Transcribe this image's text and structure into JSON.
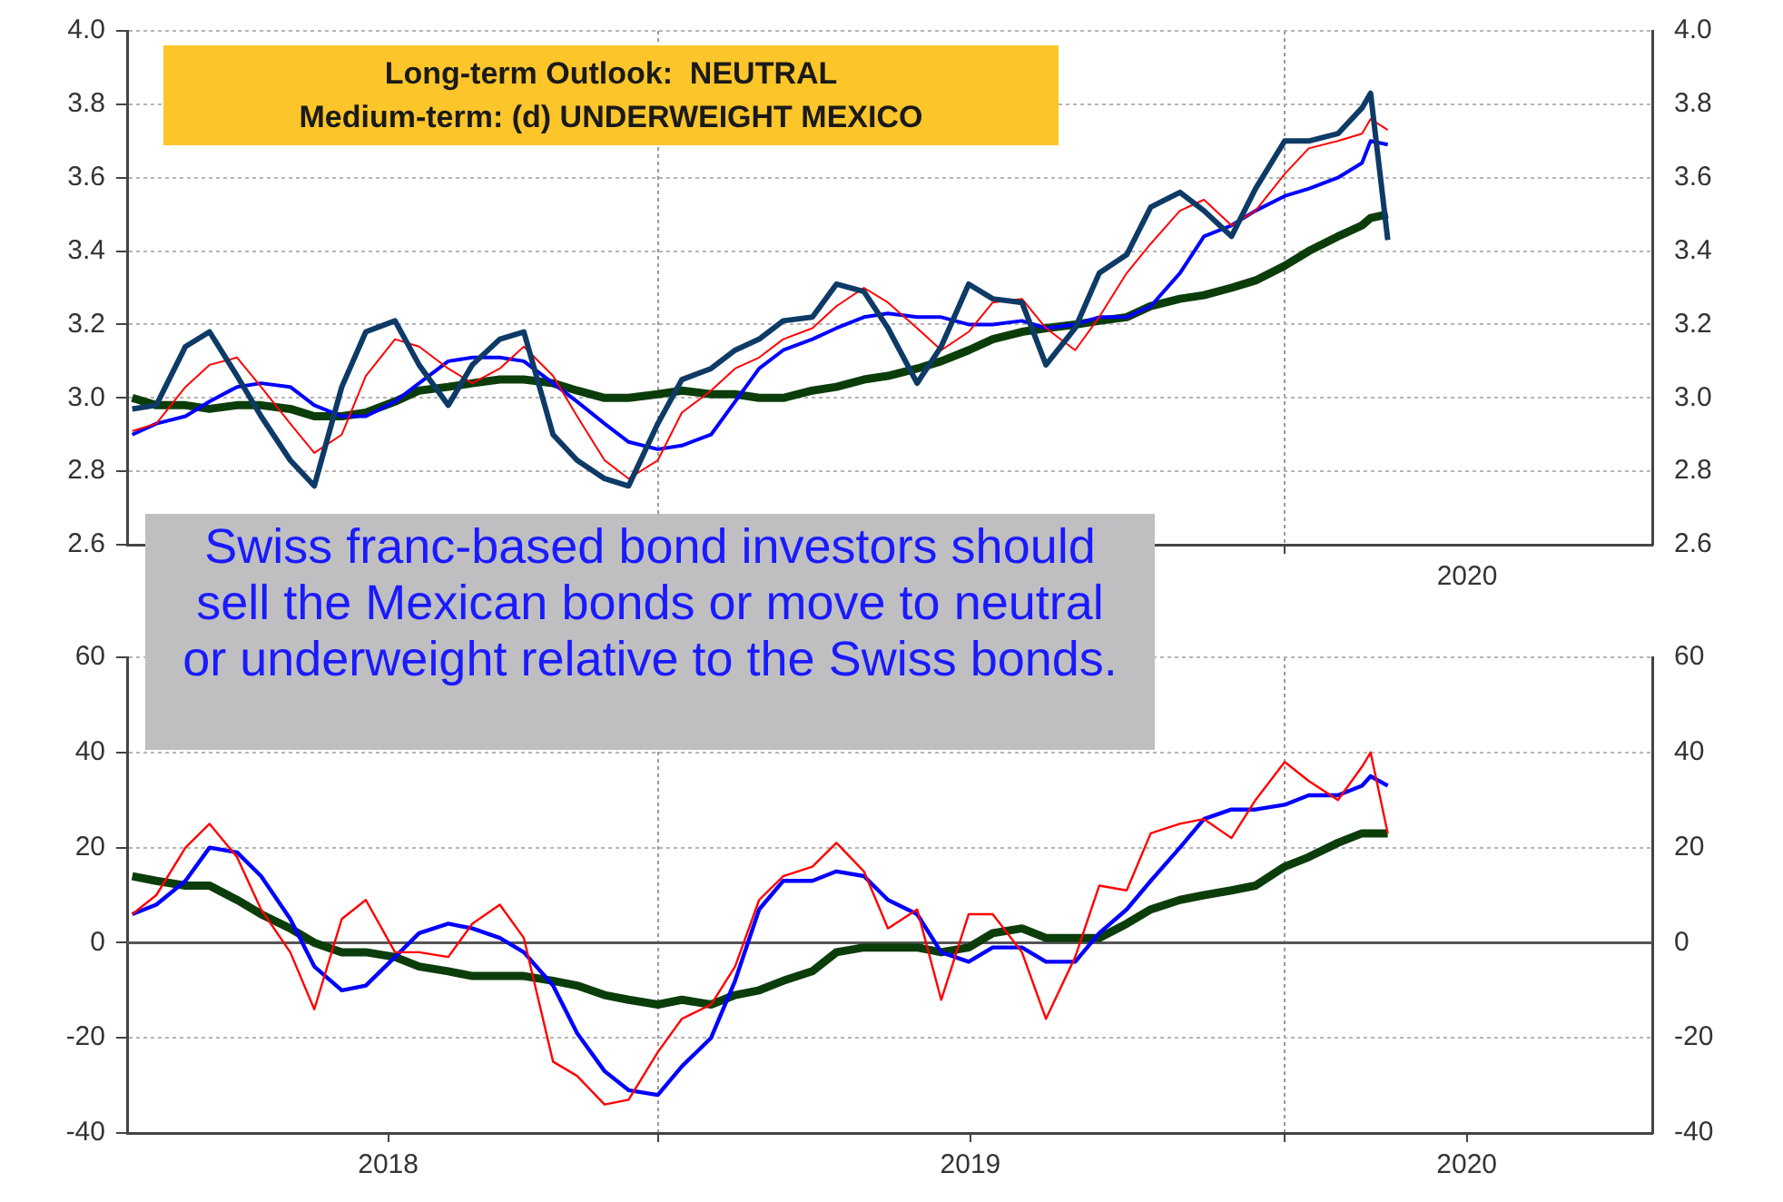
{
  "chart_data": [
    {
      "type": "line",
      "x": [
        "2018-03-01",
        "2018-03-15",
        "2018-04-01",
        "2018-04-15",
        "2018-05-01",
        "2018-05-15",
        "2018-06-01",
        "2018-06-15",
        "2018-07-01",
        "2018-07-15",
        "2018-08-01",
        "2018-08-15",
        "2018-09-01",
        "2018-09-15",
        "2018-10-01",
        "2018-10-15",
        "2018-11-01",
        "2018-11-15",
        "2018-12-01",
        "2018-12-15",
        "2019-01-01",
        "2019-01-15",
        "2019-02-01",
        "2019-02-15",
        "2019-03-01",
        "2019-03-15",
        "2019-04-01",
        "2019-04-15",
        "2019-05-01",
        "2019-05-15",
        "2019-06-01",
        "2019-06-15",
        "2019-07-01",
        "2019-07-15",
        "2019-08-01",
        "2019-08-15",
        "2019-09-01",
        "2019-09-15",
        "2019-10-01",
        "2019-10-15",
        "2019-11-01",
        "2019-11-15",
        "2019-12-01",
        "2019-12-15",
        "2020-01-01",
        "2020-01-15",
        "2020-02-01",
        "2020-02-15",
        "2020-02-20",
        "2020-03-01"
      ],
      "series": [
        {
          "color": "#0d3a66",
          "values": [
            2.97,
            2.98,
            3.14,
            3.18,
            3.06,
            2.95,
            2.83,
            2.76,
            3.03,
            3.18,
            3.21,
            3.09,
            2.98,
            3.09,
            3.16,
            3.18,
            2.9,
            2.83,
            2.78,
            2.76,
            2.93,
            3.05,
            3.08,
            3.13,
            3.16,
            3.21,
            3.22,
            3.31,
            3.29,
            3.19,
            3.04,
            3.14,
            3.31,
            3.27,
            3.26,
            3.09,
            3.19,
            3.34,
            3.39,
            3.52,
            3.56,
            3.51,
            3.44,
            3.57,
            3.7,
            3.7,
            3.72,
            3.79,
            3.83,
            3.43
          ]
        },
        {
          "color": "#ff0000",
          "values": [
            2.91,
            2.93,
            3.03,
            3.09,
            3.11,
            3.03,
            2.93,
            2.85,
            2.9,
            3.06,
            3.16,
            3.14,
            3.08,
            3.04,
            3.08,
            3.14,
            3.06,
            2.95,
            2.83,
            2.78,
            2.83,
            2.96,
            3.02,
            3.08,
            3.11,
            3.16,
            3.19,
            3.25,
            3.3,
            3.26,
            3.19,
            3.13,
            3.18,
            3.26,
            3.27,
            3.19,
            3.13,
            3.22,
            3.34,
            3.42,
            3.51,
            3.54,
            3.47,
            3.51,
            3.61,
            3.68,
            3.7,
            3.72,
            3.76,
            3.73
          ]
        },
        {
          "color": "#0000ff",
          "values": [
            2.9,
            2.93,
            2.95,
            2.99,
            3.03,
            3.04,
            3.03,
            2.98,
            2.95,
            2.95,
            2.99,
            3.04,
            3.1,
            3.11,
            3.11,
            3.1,
            3.04,
            2.99,
            2.93,
            2.88,
            2.86,
            2.87,
            2.9,
            2.99,
            3.08,
            3.13,
            3.16,
            3.19,
            3.22,
            3.23,
            3.22,
            3.22,
            3.2,
            3.2,
            3.21,
            3.19,
            3.2,
            3.22,
            3.22,
            3.25,
            3.34,
            3.44,
            3.47,
            3.51,
            3.55,
            3.57,
            3.6,
            3.64,
            3.7,
            3.69
          ]
        },
        {
          "color": "#0b3d0b",
          "values": [
            3.0,
            2.98,
            2.98,
            2.97,
            2.98,
            2.98,
            2.97,
            2.95,
            2.95,
            2.96,
            2.99,
            3.02,
            3.03,
            3.04,
            3.05,
            3.05,
            3.04,
            3.02,
            3.0,
            3.0,
            3.01,
            3.02,
            3.01,
            3.01,
            3.0,
            3.0,
            3.02,
            3.03,
            3.05,
            3.06,
            3.08,
            3.1,
            3.13,
            3.16,
            3.18,
            3.19,
            3.2,
            3.21,
            3.22,
            3.25,
            3.27,
            3.28,
            3.3,
            3.32,
            3.36,
            3.4,
            3.44,
            3.47,
            3.49,
            3.5
          ]
        }
      ],
      "xlim": [
        "2018-02-26",
        "2020-08-02"
      ],
      "xticks": [
        {
          "value": "2019-01-01",
          "label": null
        },
        {
          "value": "2020-01-01",
          "label": null
        }
      ],
      "tick_labels": "y",
      "ylim": [
        2.6,
        4.0
      ],
      "yticks": [
        2.6,
        2.8,
        {
          "value": 3.0,
          "label": "3.0"
        },
        3.2,
        3.4,
        3.6,
        3.8,
        {
          "value": 4.0,
          "label": "4.0"
        }
      ],
      "y2lim": [
        2.6,
        4.0
      ],
      "y2ticks": [
        2.6,
        2.8,
        {
          "value": 3.0,
          "label": "3.0"
        },
        3.2,
        3.4,
        3.6,
        3.8,
        {
          "value": 4.0,
          "label": "4.0"
        }
      ],
      "grid": true,
      "legend": false,
      "annotations": [
        "Long-term Outlook:  NEUTRAL\nMedium-term: (d) UNDERWEIGHT MEXICO",
        "Swiss franc-based bond investors should sell the Mexican bonds or move to neutral or underweight relative to the Swiss bonds.",
        "2020"
      ]
    },
    {
      "type": "line",
      "x": [
        "2018-03-01",
        "2018-03-15",
        "2018-04-01",
        "2018-04-15",
        "2018-05-01",
        "2018-05-15",
        "2018-06-01",
        "2018-06-15",
        "2018-07-01",
        "2018-07-15",
        "2018-08-01",
        "2018-08-15",
        "2018-09-01",
        "2018-09-15",
        "2018-10-01",
        "2018-10-15",
        "2018-11-01",
        "2018-11-15",
        "2018-12-01",
        "2018-12-15",
        "2019-01-01",
        "2019-01-15",
        "2019-02-01",
        "2019-02-15",
        "2019-03-01",
        "2019-03-15",
        "2019-04-01",
        "2019-04-15",
        "2019-05-01",
        "2019-05-15",
        "2019-06-01",
        "2019-06-15",
        "2019-07-01",
        "2019-07-15",
        "2019-08-01",
        "2019-08-15",
        "2019-09-01",
        "2019-09-15",
        "2019-10-01",
        "2019-10-15",
        "2019-11-01",
        "2019-11-15",
        "2019-12-01",
        "2019-12-15",
        "2020-01-01",
        "2020-01-15",
        "2020-02-01",
        "2020-02-15",
        "2020-02-20",
        "2020-03-01"
      ],
      "series": [
        {
          "color": "#ff0000",
          "values": [
            6,
            10,
            20,
            25,
            18,
            7,
            -2,
            -14,
            5,
            9,
            -2,
            -2,
            -3,
            4,
            8,
            1,
            -25,
            -28,
            -34,
            -33,
            -23,
            -16,
            -13,
            -5,
            9,
            14,
            16,
            21,
            15,
            3,
            7,
            -12,
            6,
            6,
            -2,
            -16,
            -3,
            12,
            11,
            23,
            25,
            26,
            22,
            30,
            38,
            34,
            30,
            37,
            40,
            23
          ]
        },
        {
          "color": "#0000ff",
          "values": [
            6,
            8,
            13,
            20,
            19,
            14,
            5,
            -5,
            -10,
            -9,
            -3,
            2,
            4,
            3,
            1,
            -2,
            -9,
            -19,
            -27,
            -31,
            -32,
            -26,
            -20,
            -8,
            7,
            13,
            13,
            15,
            14,
            9,
            6,
            -2,
            -4,
            -1,
            -1,
            -4,
            -4,
            2,
            7,
            13,
            20,
            26,
            28,
            28,
            29,
            31,
            31,
            33,
            35,
            33
          ]
        },
        {
          "color": "#0b3d0b",
          "values": [
            14,
            13,
            12,
            12,
            9,
            6,
            3,
            0,
            -2,
            -2,
            -3,
            -5,
            -6,
            -7,
            -7,
            -7,
            -8,
            -9,
            -11,
            -12,
            -13,
            -12,
            -13,
            -11,
            -10,
            -8,
            -6,
            -2,
            -1,
            -1,
            -1,
            -2,
            -1,
            2,
            3,
            1,
            1,
            1,
            4,
            7,
            9,
            10,
            11,
            12,
            16,
            18,
            21,
            23,
            23,
            23
          ]
        }
      ],
      "xlim": [
        "2018-02-26",
        "2020-08-02"
      ],
      "xticks": [
        {
          "value": "2019-01-01",
          "label": null
        },
        {
          "value": "2020-01-01",
          "label": null
        },
        {
          "value": "2018-07-28",
          "label": "2018"
        },
        {
          "value": "2019-07-02",
          "label": "2019"
        },
        {
          "value": "2020-04-16",
          "label": "2020"
        }
      ],
      "ylim": [
        -40,
        60
      ],
      "yticks": [
        -40,
        -20,
        0,
        20,
        40,
        60
      ],
      "y2lim": [
        -40,
        60
      ],
      "y2ticks": [
        -40,
        -20,
        0,
        20,
        40,
        60
      ],
      "ref_lines": [
        {
          "axis": "y",
          "value": 0,
          "color": "#555555"
        }
      ],
      "grid": true,
      "legend": false
    }
  ]
}
